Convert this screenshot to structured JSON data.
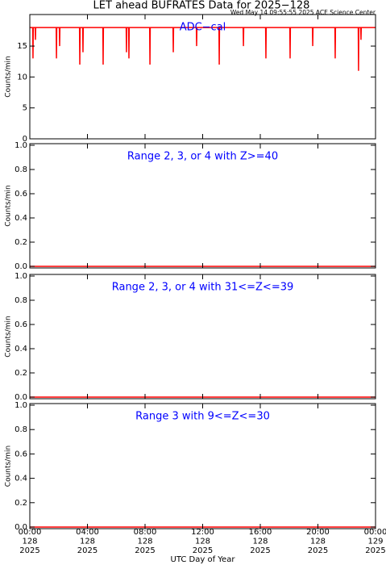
{
  "chart_data": [
    {
      "type": "line",
      "title": "LET ahead BUFRATES Data for 2025−128",
      "subtitle": "Wed May 14 09:55:55 2025 ACE Science Center",
      "annotation": "ADC−cal",
      "ylabel": "Counts/min",
      "xlim": [
        0,
        24
      ],
      "xticks": [
        0,
        4,
        8,
        12,
        16,
        20,
        24
      ],
      "ylim": [
        0,
        20.1
      ],
      "yticks": [
        0,
        5,
        10,
        15
      ],
      "series": [
        {
          "color": "#ff0000",
          "x": [
            0,
            0.2,
            0.22,
            0.24,
            0.37,
            0.39,
            0.41,
            1.83,
            1.85,
            1.87,
            2.05,
            2.07,
            2.09,
            3.45,
            3.47,
            3.49,
            3.67,
            3.69,
            3.71,
            5.07,
            5.09,
            5.11,
            6.69,
            6.71,
            6.73,
            6.86,
            6.88,
            6.9,
            8.32,
            8.34,
            8.36,
            9.94,
            9.96,
            9.98,
            11.56,
            11.58,
            11.6,
            13.13,
            13.15,
            13.17,
            14.81,
            14.83,
            14.85,
            16.37,
            16.39,
            16.41,
            18.05,
            18.07,
            18.09,
            19.62,
            19.64,
            19.66,
            21.18,
            21.2,
            21.22,
            22.8,
            22.82,
            22.84,
            22.97,
            22.99,
            23.01,
            24
          ],
          "values": [
            18,
            18,
            13,
            18,
            18,
            16,
            18,
            18,
            13,
            18,
            18,
            15,
            18,
            18,
            12,
            18,
            18,
            14,
            18,
            18,
            12,
            18,
            18,
            14,
            18,
            18,
            13,
            18,
            18,
            12,
            18,
            18,
            14,
            18,
            18,
            15,
            18,
            18,
            12,
            18,
            18,
            15,
            18,
            18,
            13,
            18,
            18,
            13,
            18,
            18,
            15,
            18,
            18,
            13,
            18,
            18,
            11,
            18,
            18,
            16,
            18,
            18
          ]
        }
      ]
    },
    {
      "type": "line",
      "annotation": "Range 2, 3, or 4 with Z>=40",
      "ylabel": "Counts/min",
      "xlim": [
        0,
        24
      ],
      "xticks": [
        0,
        4,
        8,
        12,
        16,
        20,
        24
      ],
      "ylim": [
        -0.0133,
        1.0133
      ],
      "yticks": [
        {
          "value": 0,
          "label": "0.0"
        },
        0.2,
        0.4,
        0.6,
        0.8,
        {
          "value": 1,
          "label": "1.0"
        }
      ],
      "series": [
        {
          "color": "#ff0000",
          "x": [
            0,
            24
          ],
          "values": [
            0,
            0
          ]
        }
      ]
    },
    {
      "type": "line",
      "annotation": "Range 2, 3, or 4 with 31<=Z<=39",
      "ylabel": "Counts/min",
      "xlim": [
        0,
        24
      ],
      "xticks": [
        0,
        4,
        8,
        12,
        16,
        20,
        24
      ],
      "ylim": [
        -0.0133,
        1.0133
      ],
      "yticks": [
        {
          "value": 0,
          "label": "0.0"
        },
        0.2,
        0.4,
        0.6,
        0.8,
        {
          "value": 1,
          "label": "1.0"
        }
      ],
      "series": [
        {
          "color": "#ff0000",
          "x": [
            0,
            24
          ],
          "values": [
            0,
            0
          ]
        }
      ]
    },
    {
      "type": "line",
      "annotation": "Range 3 with 9<=Z<=30",
      "ylabel": "Counts/min",
      "xlabel": "UTC Day of Year",
      "xlim": [
        0,
        24
      ],
      "xticks": [
        {
          "value": 0,
          "label": [
            "00:00",
            "128",
            "2025"
          ]
        },
        {
          "value": 4,
          "label": [
            "04:00",
            "128",
            "2025"
          ]
        },
        {
          "value": 8,
          "label": [
            "08:00",
            "128",
            "2025"
          ]
        },
        {
          "value": 12,
          "label": [
            "12:00",
            "128",
            "2025"
          ]
        },
        {
          "value": 16,
          "label": [
            "16:00",
            "128",
            "2025"
          ]
        },
        {
          "value": 20,
          "label": [
            "20:00",
            "128",
            "2025"
          ]
        },
        {
          "value": 24,
          "label": [
            "00:00",
            "129",
            "2025"
          ]
        }
      ],
      "ylim": [
        -0.0133,
        1.0133
      ],
      "yticks": [
        {
          "value": 0,
          "label": "0.0"
        },
        0.2,
        0.4,
        0.6,
        0.8,
        {
          "value": 1,
          "label": "1.0"
        }
      ],
      "series": [
        {
          "color": "#ff0000",
          "x": [
            0,
            24
          ],
          "values": [
            0,
            0
          ]
        }
      ]
    }
  ]
}
